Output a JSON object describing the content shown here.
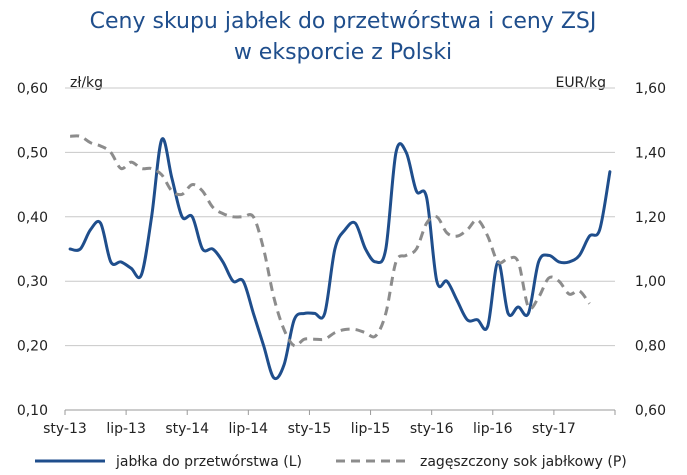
{
  "chart_data": {
    "type": "line",
    "title_lines": [
      "Ceny skupu jabłek do przetwórstwa i ceny ZSJ",
      "w eksporcie z Polski"
    ],
    "y_left": {
      "unit": "zł/kg",
      "min": 0.1,
      "max": 0.6,
      "ticks": [
        "0,10",
        "0,20",
        "0,30",
        "0,40",
        "0,50",
        "0,60"
      ]
    },
    "y_right": {
      "unit": "EUR/kg",
      "min": 0.6,
      "max": 1.6,
      "ticks": [
        "0,60",
        "0,80",
        "1,00",
        "1,20",
        "1,40",
        "1,60"
      ]
    },
    "x_tick_labels": [
      "sty-13",
      "lip-13",
      "sty-14",
      "lip-14",
      "sty-15",
      "lip-15",
      "sty-16",
      "lip-16",
      "sty-17"
    ],
    "grid": "horizontal",
    "legend_position": "bottom",
    "series": [
      {
        "name": "jabłka do przetwórstwa (L)",
        "axis": "left",
        "color": "#1f4e8c",
        "style": "solid",
        "values": [
          0.35,
          0.35,
          0.38,
          0.39,
          0.33,
          0.33,
          0.32,
          0.31,
          0.4,
          0.52,
          0.46,
          0.4,
          0.4,
          0.35,
          0.35,
          0.33,
          0.3,
          0.3,
          0.25,
          0.2,
          0.15,
          0.17,
          0.24,
          0.25,
          0.25,
          0.25,
          0.35,
          0.38,
          0.39,
          0.35,
          0.33,
          0.35,
          0.5,
          0.5,
          0.44,
          0.43,
          0.3,
          0.3,
          0.27,
          0.24,
          0.24,
          0.23,
          0.33,
          0.25,
          0.26,
          0.25,
          0.33,
          0.34,
          0.33,
          0.33,
          0.34,
          0.37,
          0.38,
          0.47
        ]
      },
      {
        "name": "zagęszczony sok jabłkowy (P)",
        "axis": "right",
        "color": "#8c8c8c",
        "style": "dashed",
        "values": [
          1.45,
          1.45,
          1.43,
          1.42,
          1.4,
          1.35,
          1.37,
          1.35,
          1.35,
          1.33,
          1.28,
          1.27,
          1.3,
          1.28,
          1.23,
          1.21,
          1.2,
          1.2,
          1.2,
          1.1,
          0.95,
          0.85,
          0.8,
          0.82,
          0.82,
          0.82,
          0.84,
          0.85,
          0.85,
          0.84,
          0.83,
          0.9,
          1.06,
          1.08,
          1.1,
          1.18,
          1.2,
          1.15,
          1.14,
          1.16,
          1.19,
          1.14,
          1.06,
          1.07,
          1.06,
          0.92,
          0.95,
          1.01,
          1.0,
          0.96,
          0.97,
          0.93
        ]
      }
    ]
  }
}
